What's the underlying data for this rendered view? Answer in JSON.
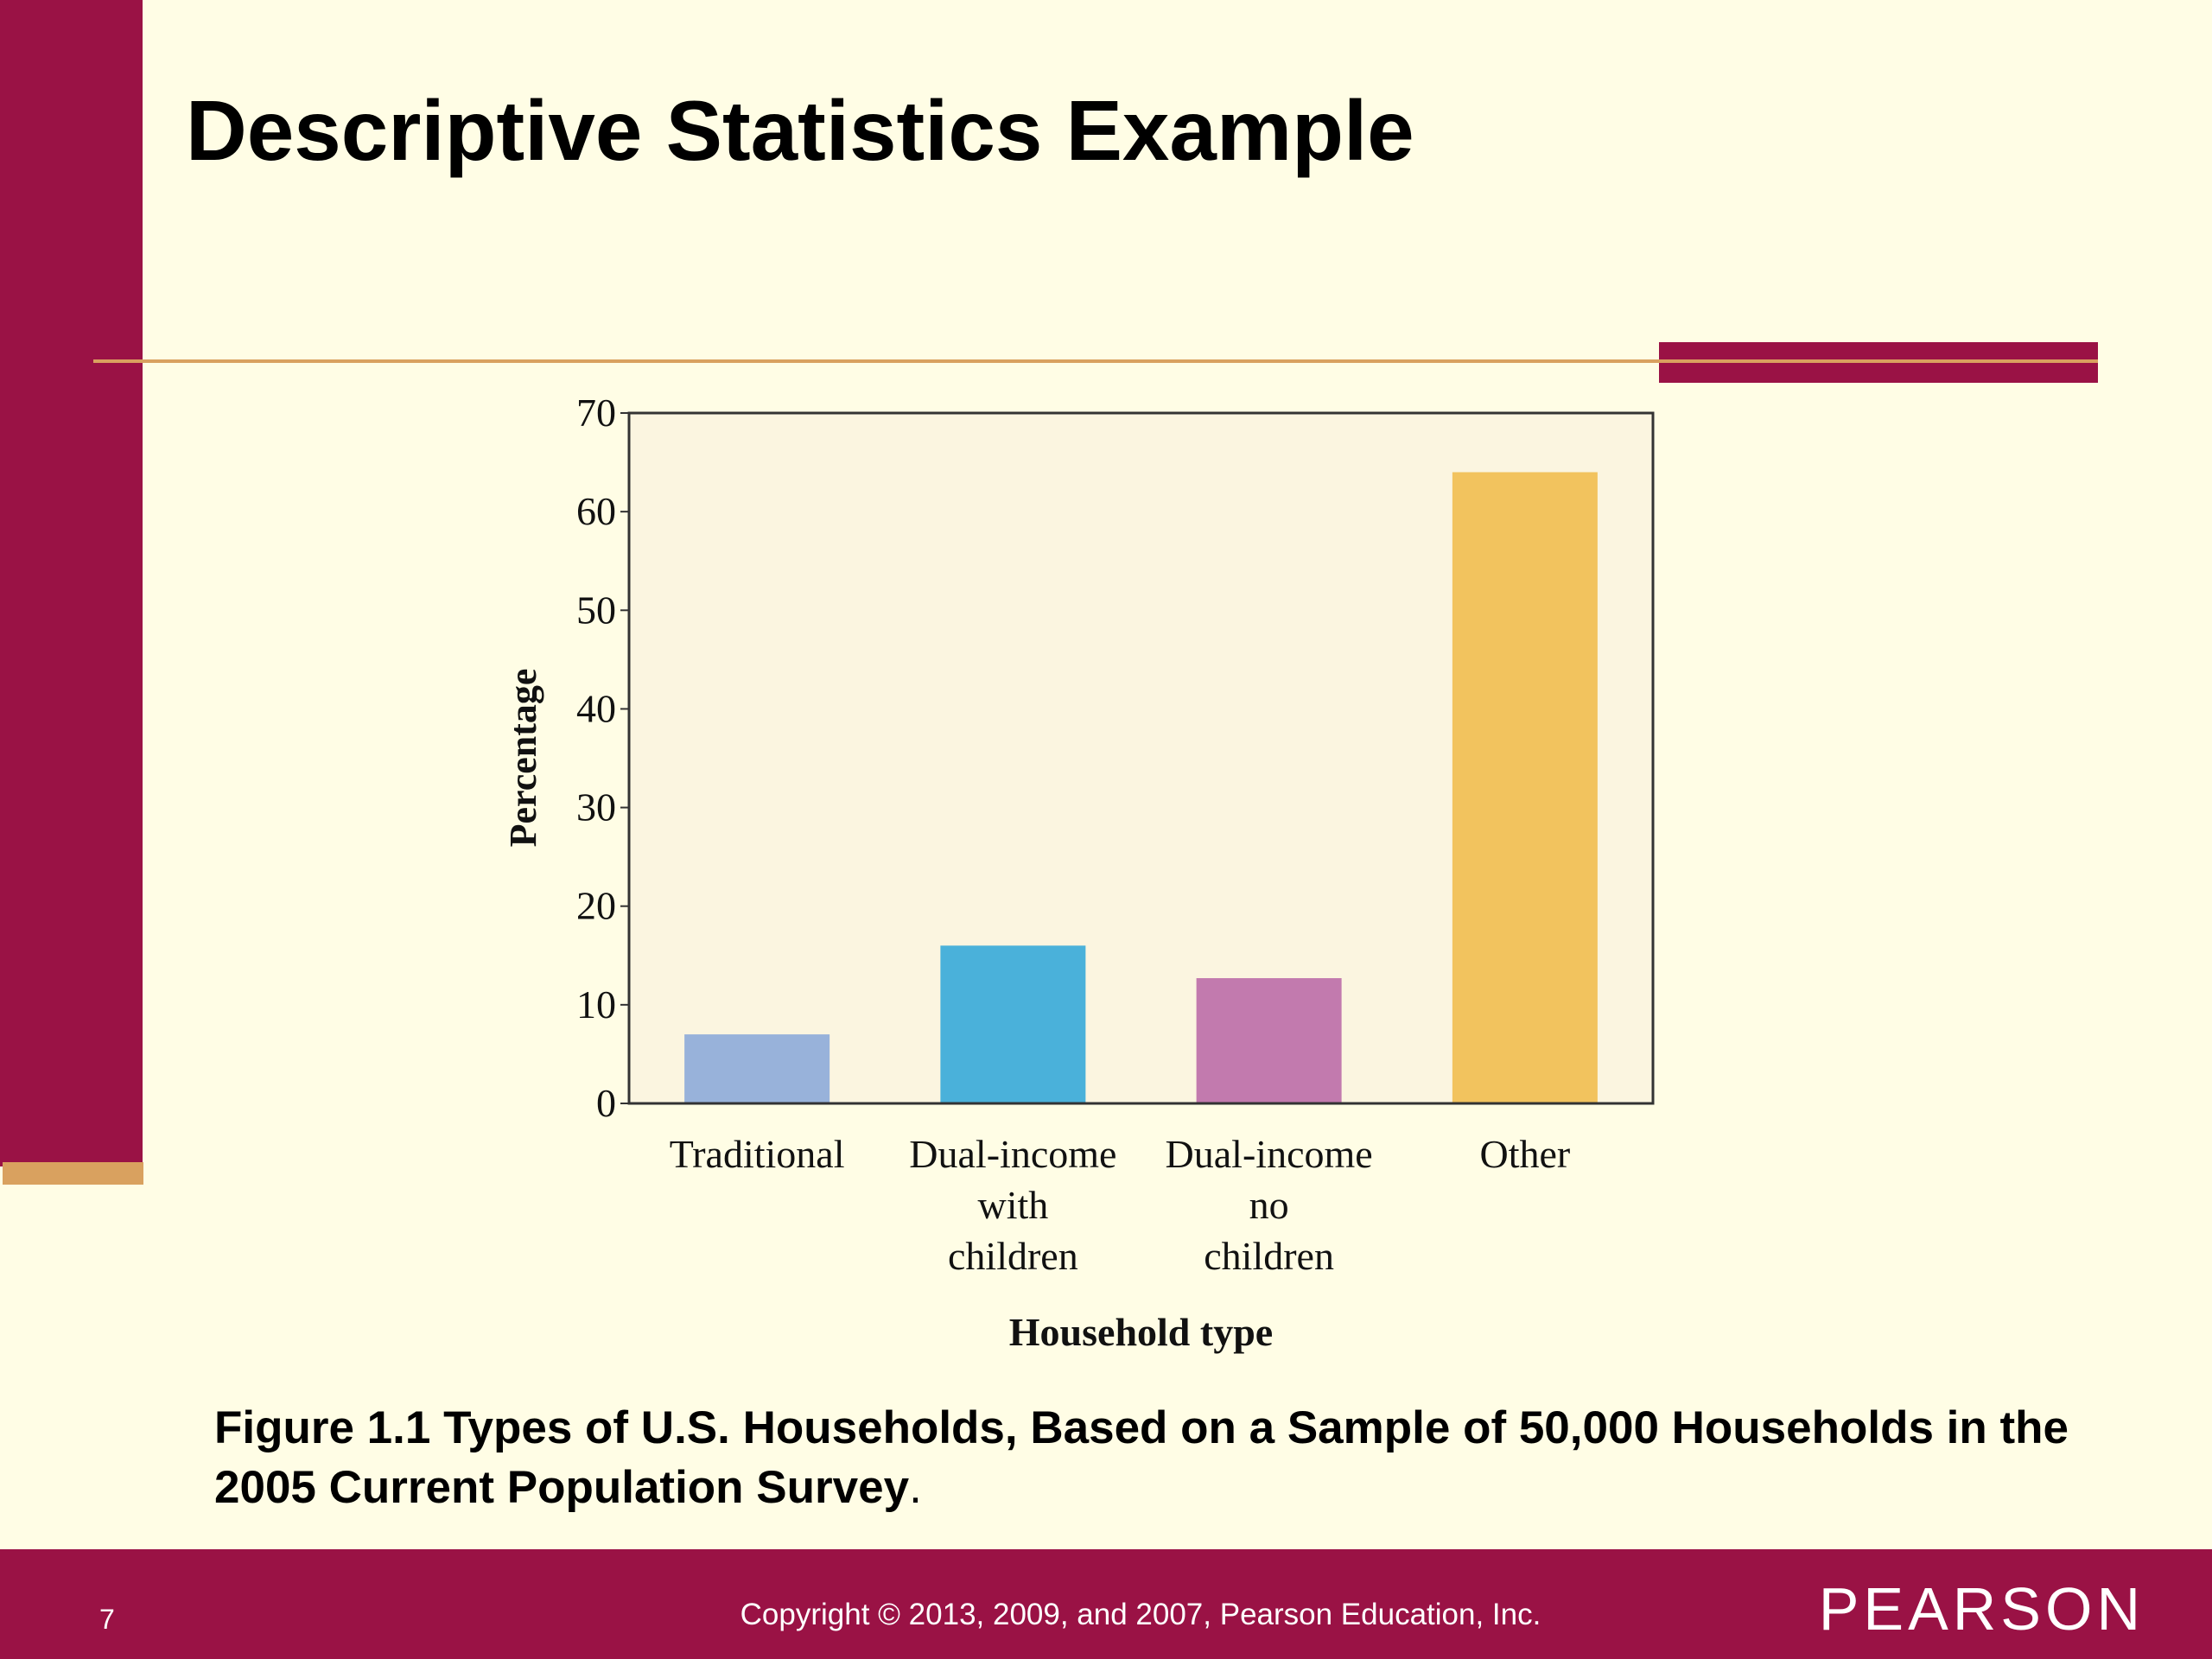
{
  "slide": {
    "title": "Descriptive Statistics Example",
    "caption_main": "Figure 1.1 Types of U.S. Households, Based on a Sample of 50,000 Households in the 2005 Current Population Survey",
    "caption_end": ".",
    "page_number": "7",
    "copyright": "Copyright © 2013, 2009, and 2007, Pearson Education, Inc.",
    "logo": "PEARSON"
  },
  "colors": {
    "maroon": "#9A1245",
    "tan": "#D9A15F",
    "background": "#FFFDE5",
    "plot_background": "#FBF5E0"
  },
  "chart_data": {
    "type": "bar",
    "categories": [
      "Traditional",
      "Dual-income with children",
      "Dual-income no children",
      "Other"
    ],
    "category_label_lines": [
      [
        "Traditional"
      ],
      [
        "Dual-income",
        "with",
        "children"
      ],
      [
        "Dual-income",
        "no",
        "children"
      ],
      [
        "Other"
      ]
    ],
    "values": [
      7,
      16,
      12.7,
      64
    ],
    "bar_colors": [
      "#98B2DA",
      "#4AB1DA",
      "#C27AAE",
      "#F2C35E"
    ],
    "xlabel": "Household type",
    "ylabel": "Percentage",
    "ylim": [
      0,
      70
    ],
    "yticks": [
      0,
      10,
      20,
      30,
      40,
      50,
      60,
      70
    ],
    "grid": false,
    "legend": false
  }
}
